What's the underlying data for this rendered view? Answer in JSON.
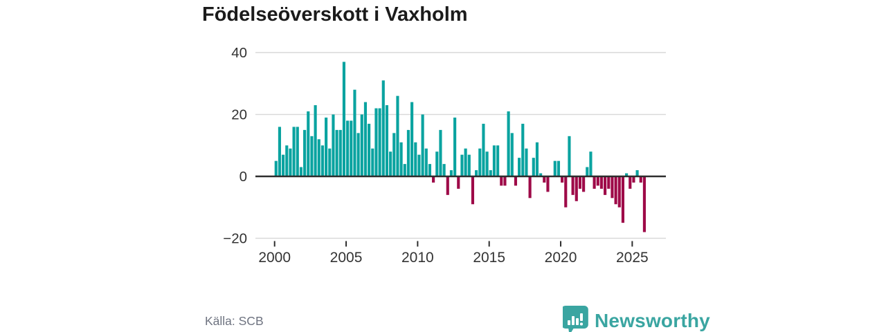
{
  "title": "Födelseöverskott i Vaxholm",
  "source_label": "Källa: SCB",
  "logo": {
    "text": "Newsworthy"
  },
  "colors": {
    "positive": "#0aa3a0",
    "negative": "#9e0a48",
    "zero_axis": "#2d2d2d",
    "grid": "#d9d9d9",
    "tick_text": "#333333",
    "source_text": "#6e7380",
    "logo": "#3aa5a1"
  },
  "chart_data": {
    "type": "bar",
    "title": "Födelseöverskott i Vaxholm",
    "frequency": "quarterly",
    "x_start": "2000-Q1",
    "x_end": "2025-Q4",
    "ylim": [
      -20,
      40
    ],
    "grid": "horizontal",
    "y_ticks": [
      {
        "value": 40,
        "label": "40"
      },
      {
        "value": 20,
        "label": "20"
      },
      {
        "value": 0,
        "label": "0"
      },
      {
        "value": -20,
        "label": "−20"
      }
    ],
    "x_ticks": [
      {
        "year": 2000,
        "label": "2000"
      },
      {
        "year": 2005,
        "label": "2005"
      },
      {
        "year": 2010,
        "label": "2010"
      },
      {
        "year": 2015,
        "label": "2015"
      },
      {
        "year": 2020,
        "label": "2020"
      },
      {
        "year": 2025,
        "label": "2025"
      }
    ],
    "series": [
      {
        "name": "Födelseöverskott",
        "values": [
          5,
          16,
          7,
          10,
          9,
          16,
          16,
          3,
          15,
          21,
          13,
          23,
          12,
          10,
          19,
          9,
          20,
          15,
          15,
          37,
          18,
          18,
          28,
          14,
          20,
          24,
          17,
          9,
          22,
          22,
          31,
          23,
          8,
          14,
          26,
          11,
          4,
          15,
          24,
          11,
          7,
          20,
          9,
          4,
          -2,
          8,
          15,
          4,
          -6,
          2,
          19,
          -4,
          7,
          9,
          7,
          -9,
          2,
          9,
          17,
          8,
          2,
          10,
          10,
          -3,
          -3,
          21,
          14,
          -3,
          6,
          17,
          9,
          -7,
          6,
          11,
          1,
          -2,
          -5,
          0,
          5,
          5,
          -2,
          -10,
          13,
          -6,
          -8,
          -4,
          -5,
          3,
          8,
          -4,
          -3,
          -4,
          -6,
          -4,
          -7,
          -9,
          -10,
          -15,
          1,
          -4,
          -2,
          2,
          -2,
          -18
        ]
      }
    ]
  }
}
